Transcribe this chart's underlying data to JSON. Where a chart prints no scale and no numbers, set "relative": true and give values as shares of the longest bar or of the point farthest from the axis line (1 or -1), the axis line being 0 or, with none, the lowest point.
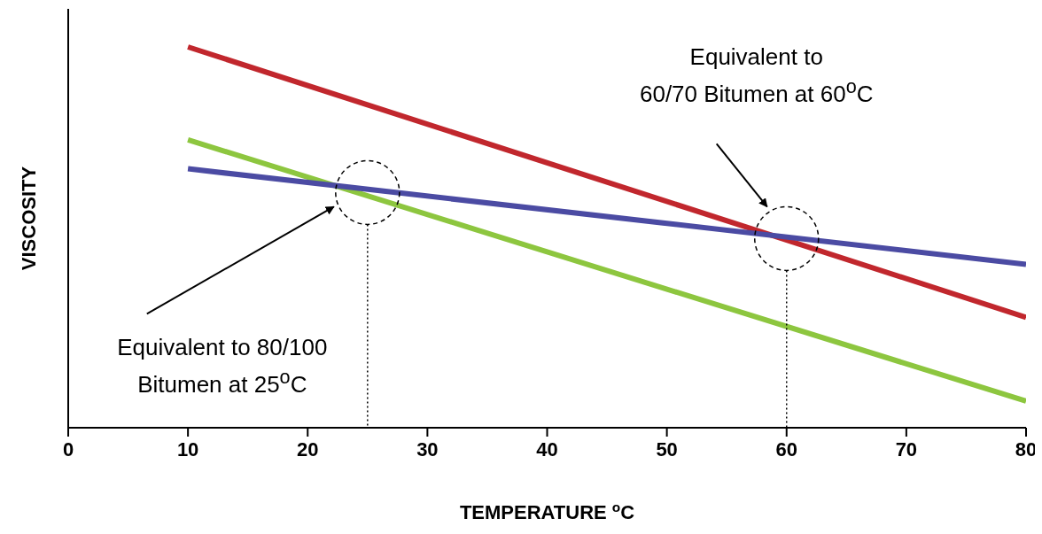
{
  "chart_data": {
    "type": "line",
    "xlabel": "TEMPERATURE $^{o}$C",
    "ylabel": "VISCOSITY",
    "relative": true,
    "xlim": [
      0,
      80
    ],
    "xticks": [
      0,
      10,
      20,
      30,
      40,
      50,
      60,
      70,
      80
    ],
    "marker": "none",
    "line_style": "solid",
    "x": [
      10,
      80
    ],
    "series": [
      {
        "color": "#c1272d",
        "values": [
          1,
          0.29
        ]
      },
      {
        "color": "#8dc63f",
        "values": [
          0.756,
          0.07
        ]
      },
      {
        "color": "#4b4ba3",
        "values": [
          0.68,
          0.429
        ]
      }
    ],
    "ref_lines": [
      {
        "axis": "x",
        "value": 25,
        "line_style": "dotted",
        "color": "#000000"
      },
      {
        "axis": "x",
        "value": 60,
        "line_style": "dotted",
        "color": "#000000"
      }
    ],
    "annotations": [
      "Equivalent to 80/100\nBitumen at 25$^{o}$C",
      "Equivalent to\n60/70 Bitumen at 60$^{o}$C"
    ]
  }
}
